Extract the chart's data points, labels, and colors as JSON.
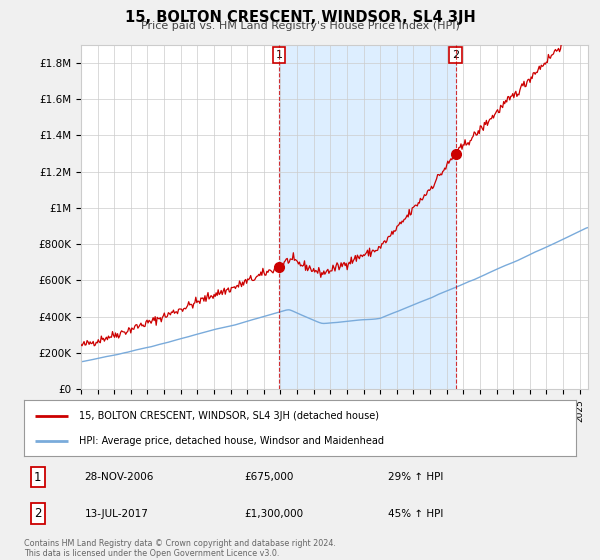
{
  "title": "15, BOLTON CRESCENT, WINDSOR, SL4 3JH",
  "subtitle": "Price paid vs. HM Land Registry's House Price Index (HPI)",
  "footer": "Contains HM Land Registry data © Crown copyright and database right 2024.\nThis data is licensed under the Open Government Licence v3.0.",
  "legend_line1": "15, BOLTON CRESCENT, WINDSOR, SL4 3JH (detached house)",
  "legend_line2": "HPI: Average price, detached house, Windsor and Maidenhead",
  "sale1_label": "1",
  "sale1_date": "28-NOV-2006",
  "sale1_price": "£675,000",
  "sale1_hpi": "29% ↑ HPI",
  "sale1_year": 2006.91,
  "sale1_value": 675000,
  "sale2_label": "2",
  "sale2_date": "13-JUL-2017",
  "sale2_price": "£1,300,000",
  "sale2_hpi": "45% ↑ HPI",
  "sale2_year": 2017.54,
  "sale2_value": 1300000,
  "red_color": "#cc0000",
  "blue_color": "#7aabdb",
  "shade_color": "#ddeeff",
  "vline_color": "#cc0000",
  "background_color": "#f0f0f0",
  "plot_bg_color": "#ffffff",
  "grid_color": "#cccccc",
  "ylim": [
    0,
    1900000
  ],
  "yticks": [
    0,
    200000,
    400000,
    600000,
    800000,
    1000000,
    1200000,
    1400000,
    1600000,
    1800000
  ],
  "ytick_labels": [
    "£0",
    "£200K",
    "£400K",
    "£600K",
    "£800K",
    "£1M",
    "£1.2M",
    "£1.4M",
    "£1.6M",
    "£1.8M"
  ],
  "xmin": 1995.0,
  "xmax": 2025.5
}
